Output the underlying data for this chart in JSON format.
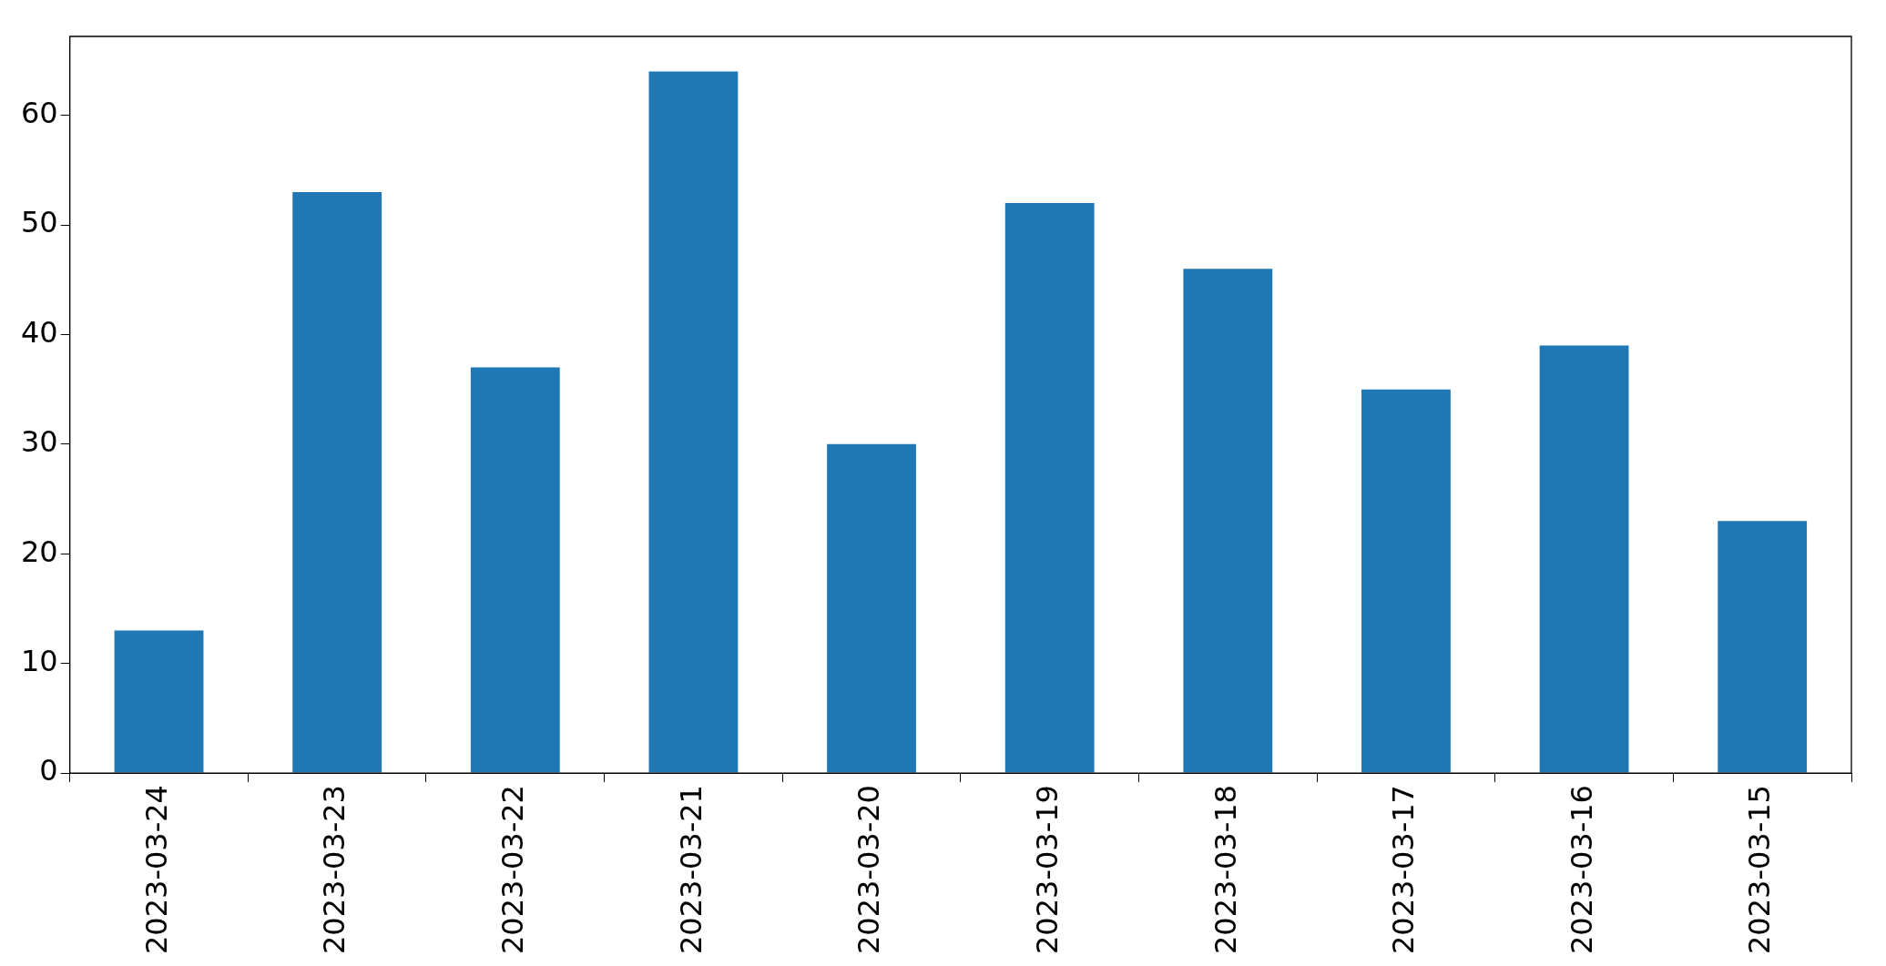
{
  "chart_data": {
    "type": "bar",
    "categories": [
      "2023-03-24",
      "2023-03-23",
      "2023-03-22",
      "2023-03-21",
      "2023-03-20",
      "2023-03-19",
      "2023-03-18",
      "2023-03-17",
      "2023-03-16",
      "2023-03-15"
    ],
    "values": [
      13,
      53,
      37,
      64,
      30,
      52,
      46,
      35,
      39,
      23
    ],
    "color": "#1f77b4",
    "ylim": [
      0,
      67.2
    ],
    "yticks": [
      0,
      10,
      20,
      30,
      40,
      50,
      60
    ],
    "grid": false,
    "legend": false
  }
}
